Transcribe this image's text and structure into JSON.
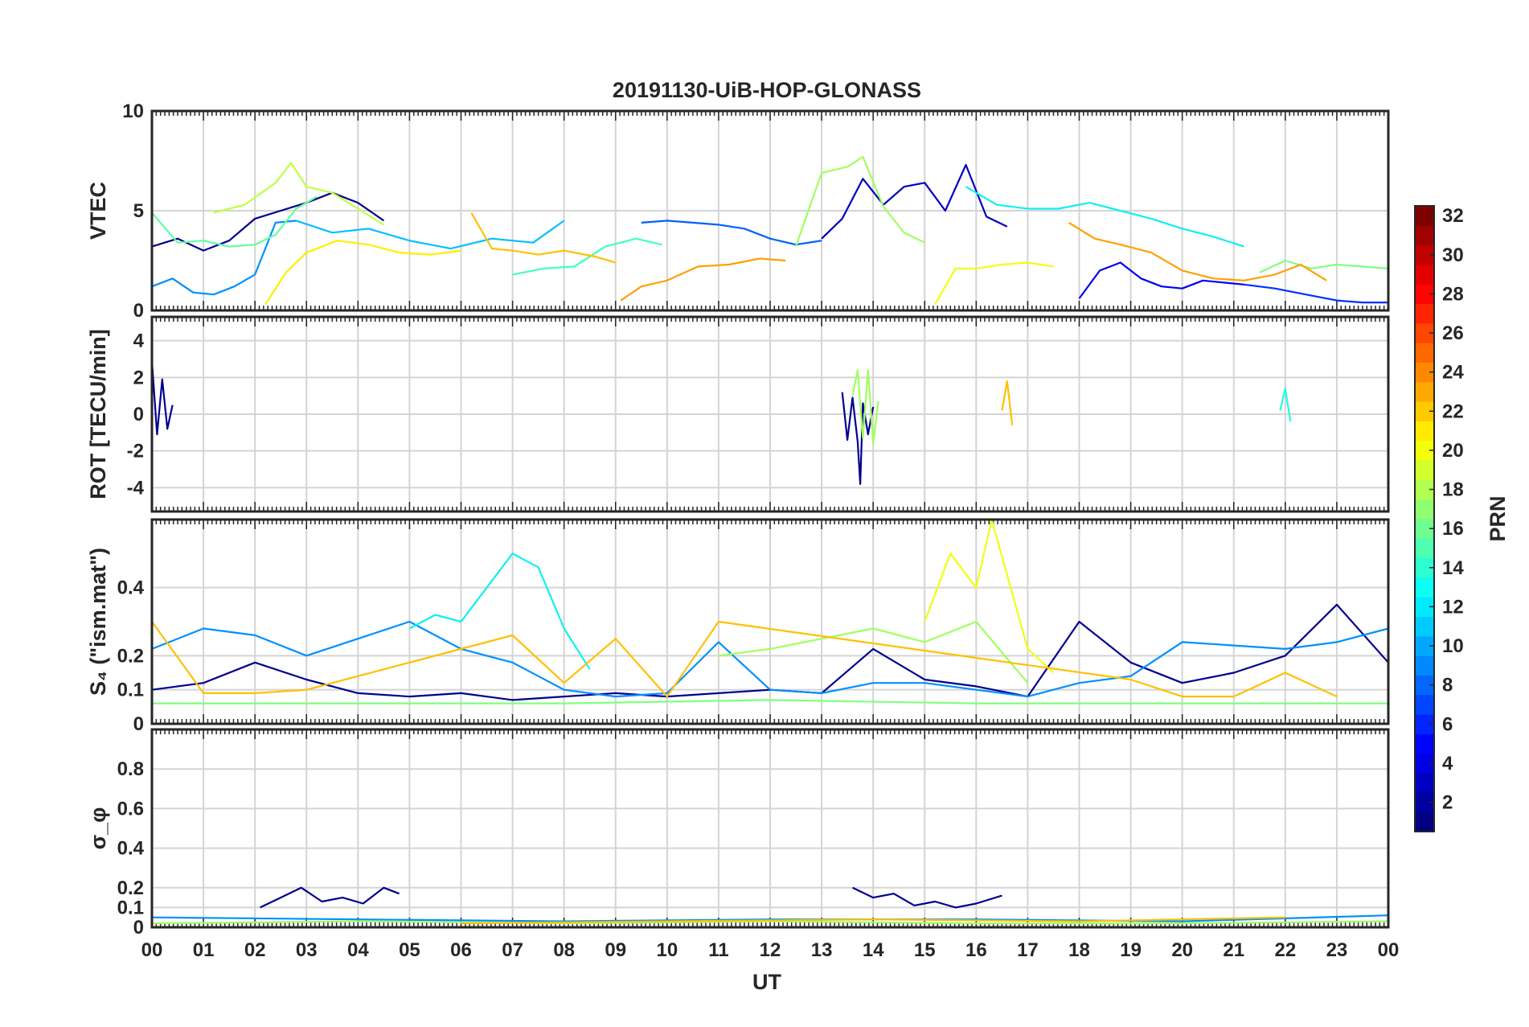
{
  "chart_data": {
    "type": "line",
    "title": "20191130-UiB-HOP-GLONASS",
    "xlabel": "UT",
    "xlim": [
      0,
      24
    ],
    "x_tick_labels": [
      "00",
      "01",
      "02",
      "03",
      "04",
      "05",
      "06",
      "07",
      "08",
      "09",
      "10",
      "11",
      "12",
      "13",
      "14",
      "15",
      "16",
      "17",
      "18",
      "19",
      "20",
      "21",
      "22",
      "23",
      "00"
    ],
    "grid": true,
    "colorbar": {
      "label": "PRN",
      "range": [
        1,
        32
      ],
      "ticks": [
        "2",
        "4",
        "6",
        "8",
        "10",
        "12",
        "14",
        "16",
        "18",
        "20",
        "22",
        "24",
        "26",
        "28",
        "30",
        "32"
      ],
      "colormap": "jet",
      "position": "right"
    },
    "panels": [
      {
        "id": "vtec",
        "ylabel": "VTEC",
        "ylim": [
          0,
          10
        ],
        "yticks": [
          "0",
          "5",
          "10"
        ],
        "series": [
          {
            "prn": 2,
            "color": "#00008f",
            "x": [
              0,
              0.5,
              1,
              1.5,
              2,
              2.5,
              3,
              3.5,
              4,
              4.5
            ],
            "y": [
              3.2,
              3.6,
              3.0,
              3.5,
              4.6,
              5.0,
              5.4,
              5.9,
              5.4,
              4.5
            ]
          },
          {
            "prn": 3,
            "color": "#0000bf",
            "x": [
              13.0,
              13.4,
              13.8,
              14.2,
              14.6,
              15.0,
              15.4,
              15.8,
              16.2,
              16.6
            ],
            "y": [
              3.6,
              4.6,
              6.6,
              5.3,
              6.2,
              6.4,
              5.0,
              7.3,
              4.7,
              4.2
            ]
          },
          {
            "prn": 4,
            "color": "#0000ef",
            "x": [
              18.0,
              18.4,
              18.8,
              19.2,
              19.6,
              20.0,
              20.4,
              20.8,
              21.2
            ],
            "y": [
              0.6,
              2.0,
              2.4,
              1.6,
              1.2,
              1.1,
              1.5,
              1.4,
              1.3
            ]
          },
          {
            "prn": 6,
            "color": "#0030ff",
            "x": [
              21.2,
              21.8,
              22.4,
              23.0,
              23.5,
              24.0
            ],
            "y": [
              1.3,
              1.1,
              0.8,
              0.5,
              0.4,
              0.4
            ]
          },
          {
            "prn": 8,
            "color": "#0060ff",
            "x": [
              9.5,
              10.0,
              10.5,
              11.0,
              11.5,
              12.0,
              12.5,
              13.0
            ],
            "y": [
              4.4,
              4.5,
              4.4,
              4.3,
              4.1,
              3.6,
              3.3,
              3.5
            ]
          },
          {
            "prn": 10,
            "color": "#0090ff",
            "x": [
              0,
              0.4,
              0.8,
              1.2,
              1.6,
              2.0,
              2.4,
              2.8
            ],
            "y": [
              1.2,
              1.6,
              0.9,
              0.8,
              1.2,
              1.8,
              4.4,
              4.5
            ]
          },
          {
            "prn": 12,
            "color": "#00c0ff",
            "x": [
              2.8,
              3.5,
              4.2,
              5.0,
              5.8,
              6.6,
              7.4,
              8.0
            ],
            "y": [
              4.5,
              3.9,
              4.1,
              3.5,
              3.1,
              3.6,
              3.4,
              4.5
            ]
          },
          {
            "prn": 13,
            "color": "#10f0ef",
            "x": [
              15.8,
              16.4,
              17.0,
              17.6,
              18.2,
              18.8,
              19.4,
              20.0,
              20.6,
              21.2
            ],
            "y": [
              6.2,
              5.3,
              5.1,
              5.1,
              5.4,
              5.0,
              4.6,
              4.1,
              3.7,
              3.2
            ]
          },
          {
            "prn": 15,
            "color": "#40ffbf",
            "x": [
              7.0,
              7.6,
              8.2,
              8.8,
              9.4,
              9.9
            ],
            "y": [
              1.8,
              2.1,
              2.2,
              3.2,
              3.6,
              3.3
            ]
          },
          {
            "prn": 16,
            "color": "#60ff9f",
            "x": [
              0,
              0.5,
              1.0,
              1.5,
              2.0,
              2.4,
              2.8,
              3.2
            ],
            "y": [
              4.9,
              3.4,
              3.5,
              3.2,
              3.3,
              3.8,
              5.1,
              5.7
            ]
          },
          {
            "prn": 17,
            "color": "#80ff80",
            "x": [
              21.5,
              22.0,
              22.5,
              23.0,
              23.5,
              24.0
            ],
            "y": [
              1.9,
              2.5,
              2.1,
              2.3,
              2.2,
              2.1
            ]
          },
          {
            "prn": 18,
            "color": "#a0ff60",
            "x": [
              12.5,
              13.0,
              13.5,
              13.8,
              14.2,
              14.6,
              15.0
            ],
            "y": [
              3.2,
              6.9,
              7.2,
              7.7,
              5.2,
              3.9,
              3.4
            ]
          },
          {
            "prn": 19,
            "color": "#c0ff40",
            "x": [
              1.2,
              1.8,
              2.4,
              2.7,
              3.0,
              3.5,
              4.0,
              4.5
            ],
            "y": [
              4.9,
              5.3,
              6.4,
              7.4,
              6.2,
              5.9,
              5.1,
              4.3
            ]
          },
          {
            "prn": 20,
            "color": "#efff10",
            "x": [
              15.2,
              15.6,
              16.0,
              16.5,
              17.0,
              17.5
            ],
            "y": [
              0.3,
              2.1,
              2.1,
              2.3,
              2.4,
              2.2
            ]
          },
          {
            "prn": 21,
            "color": "#ffef00",
            "x": [
              2.2,
              2.6,
              3.0,
              3.6,
              4.2,
              4.8,
              5.4,
              6.0
            ],
            "y": [
              0.3,
              1.9,
              2.9,
              3.5,
              3.3,
              2.9,
              2.8,
              3.0
            ]
          },
          {
            "prn": 23,
            "color": "#ffa000",
            "x": [
              9.1,
              9.5,
              10.0,
              10.6,
              11.2,
              11.8,
              12.3
            ],
            "y": [
              0.5,
              1.2,
              1.5,
              2.2,
              2.3,
              2.6,
              2.5
            ]
          },
          {
            "prn": 23,
            "color": "#ffa000",
            "x": [
              17.8,
              18.3,
              18.8,
              19.4,
              20.0,
              20.6,
              21.2,
              21.8,
              22.3,
              22.8
            ],
            "y": [
              4.4,
              3.6,
              3.3,
              2.9,
              2.0,
              1.6,
              1.5,
              1.8,
              2.3,
              1.5
            ]
          },
          {
            "prn": 22,
            "color": "#ffc000",
            "x": [
              6.2,
              6.6,
              7.0,
              7.5,
              8.0,
              8.6,
              9.0
            ],
            "y": [
              4.9,
              3.1,
              3.0,
              2.8,
              3.0,
              2.7,
              2.4
            ]
          }
        ]
      },
      {
        "id": "rot",
        "ylabel": "ROT [TECU/min]",
        "ylim": [
          -5.3,
          5.3
        ],
        "yticks": [
          "-4",
          "-2",
          "0",
          "2",
          "4"
        ],
        "series": [
          {
            "prn": 2,
            "color": "#00008f",
            "x": [
              13.4,
              13.5,
              13.6,
              13.7,
              13.75,
              13.8,
              13.9,
              14.0
            ],
            "y": [
              1.2,
              -1.4,
              0.9,
              -1.5,
              -3.8,
              0.6,
              -1.1,
              0.4
            ]
          },
          {
            "prn": 1,
            "color": "#00008f",
            "x": [
              0,
              0.1,
              0.2,
              0.3,
              0.4
            ],
            "y": [
              2.9,
              -1.1,
              1.9,
              -0.8,
              0.5
            ]
          },
          {
            "prn": 18,
            "color": "#a0ff60",
            "x": [
              13.6,
              13.7,
              13.8,
              13.9,
              14.0,
              14.1
            ],
            "y": [
              1.0,
              2.4,
              -1.3,
              2.4,
              -1.6,
              0.7
            ]
          },
          {
            "prn": 22,
            "color": "#ffc000",
            "x": [
              16.5,
              16.6,
              16.7
            ],
            "y": [
              0.2,
              1.8,
              -0.6
            ]
          },
          {
            "prn": 14,
            "color": "#20ffdf",
            "x": [
              21.9,
              22.0,
              22.1
            ],
            "y": [
              0.2,
              1.4,
              -0.4
            ]
          }
        ]
      },
      {
        "id": "s4",
        "ylabel": "S₄ (\"ism.mat\")",
        "ylim": [
          0,
          0.6
        ],
        "yticks": [
          "0",
          "0.1",
          "0.2",
          "0.4"
        ],
        "series": [
          {
            "prn": 2,
            "color": "#00008f",
            "x": [
              0,
              1,
              2,
              3,
              4,
              5,
              6,
              7,
              8,
              9,
              10,
              11,
              12,
              13,
              14,
              15,
              16,
              17,
              18,
              19,
              20,
              21,
              22,
              23,
              24
            ],
            "y": [
              0.1,
              0.12,
              0.18,
              0.13,
              0.09,
              0.08,
              0.09,
              0.07,
              0.08,
              0.09,
              0.08,
              0.09,
              0.1,
              0.09,
              0.22,
              0.13,
              0.11,
              0.08,
              0.3,
              0.18,
              0.12,
              0.15,
              0.2,
              0.35,
              0.18
            ]
          },
          {
            "prn": 10,
            "color": "#0090ff",
            "x": [
              0,
              1,
              2,
              3,
              4,
              5,
              6,
              7,
              8,
              9,
              10,
              11,
              12,
              13,
              14,
              15,
              16,
              17,
              18,
              19,
              20,
              21,
              22,
              23,
              24
            ],
            "y": [
              0.22,
              0.28,
              0.26,
              0.2,
              0.25,
              0.3,
              0.22,
              0.18,
              0.1,
              0.08,
              0.09,
              0.24,
              0.1,
              0.09,
              0.12,
              0.12,
              0.1,
              0.08,
              0.12,
              0.14,
              0.24,
              0.23,
              0.22,
              0.24,
              0.28
            ]
          },
          {
            "prn": 13,
            "color": "#10f0ef",
            "x": [
              5,
              5.5,
              6,
              6.5,
              7,
              7.5,
              8,
              8.5
            ],
            "y": [
              0.28,
              0.32,
              0.3,
              0.4,
              0.5,
              0.46,
              0.28,
              0.16
            ]
          },
          {
            "prn": 18,
            "color": "#a0ff60",
            "x": [
              11,
              12,
              13,
              14,
              15,
              16,
              17
            ],
            "y": [
              0.2,
              0.22,
              0.25,
              0.28,
              0.24,
              0.3,
              0.12
            ]
          },
          {
            "prn": 20,
            "color": "#efff10",
            "x": [
              15,
              15.5,
              16,
              16.3,
              17,
              17.5
            ],
            "y": [
              0.3,
              0.5,
              0.4,
              0.6,
              0.22,
              0.15
            ]
          },
          {
            "prn": 22,
            "color": "#ffc000",
            "x": [
              0,
              1,
              2,
              3,
              7,
              8,
              9,
              10,
              11,
              19,
              20,
              21,
              22,
              23
            ],
            "y": [
              0.3,
              0.09,
              0.09,
              0.1,
              0.26,
              0.12,
              0.25,
              0.08,
              0.3,
              0.13,
              0.08,
              0.08,
              0.15,
              0.08
            ]
          },
          {
            "prn": 17,
            "color": "#80ff80",
            "x": [
              0,
              4,
              8,
              12,
              16,
              20,
              24
            ],
            "y": [
              0.06,
              0.06,
              0.06,
              0.07,
              0.06,
              0.06,
              0.06
            ]
          }
        ]
      },
      {
        "id": "sigma",
        "ylabel": "σ_φ",
        "ylim": [
          0,
          1.0
        ],
        "yticks": [
          "0",
          "0.1",
          "0.2",
          "0.4",
          "0.6",
          "0.8"
        ],
        "series": [
          {
            "prn": 2,
            "color": "#00008f",
            "x": [
              2.1,
              2.5,
              2.9,
              3.3,
              3.7,
              4.1,
              4.5,
              4.8
            ],
            "y": [
              0.1,
              0.15,
              0.2,
              0.13,
              0.15,
              0.12,
              0.2,
              0.17
            ]
          },
          {
            "prn": 2,
            "color": "#00008f",
            "x": [
              13.6,
              14.0,
              14.4,
              14.8,
              15.2,
              15.6,
              16.0,
              16.5
            ],
            "y": [
              0.2,
              0.15,
              0.17,
              0.11,
              0.13,
              0.1,
              0.12,
              0.16
            ]
          },
          {
            "prn": 10,
            "color": "#0090ff",
            "x": [
              0,
              4,
              8,
              12,
              16,
              20,
              24
            ],
            "y": [
              0.05,
              0.04,
              0.03,
              0.04,
              0.04,
              0.03,
              0.06
            ]
          },
          {
            "prn": 18,
            "color": "#a0ff60",
            "x": [
              0,
              4,
              8,
              12,
              16,
              20,
              24
            ],
            "y": [
              0.02,
              0.03,
              0.02,
              0.03,
              0.02,
              0.02,
              0.03
            ]
          },
          {
            "prn": 22,
            "color": "#ffc000",
            "x": [
              6,
              10,
              14,
              18,
              22
            ],
            "y": [
              0.02,
              0.03,
              0.04,
              0.03,
              0.05
            ]
          }
        ]
      }
    ]
  }
}
